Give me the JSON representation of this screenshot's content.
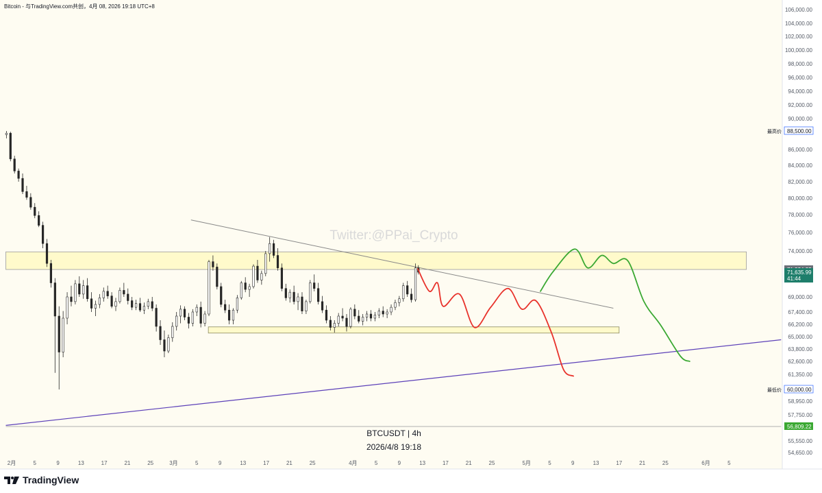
{
  "header": {
    "text": "Bitcoin - 与TradingView.com共创，4月 08, 2026 19:18 UTC+8"
  },
  "brand": {
    "name": "TradingView"
  },
  "chart_data": {
    "type": "candlestick",
    "symbol_label": "BTCUSDT | 4h",
    "time_label": "2026/4/8 19:18",
    "watermark": "Twitter:@PPai_Crypto",
    "x_ticks": [
      {
        "d": 1,
        "label": "2月"
      },
      {
        "d": 5,
        "label": "5"
      },
      {
        "d": 9,
        "label": "9"
      },
      {
        "d": 13,
        "label": "13"
      },
      {
        "d": 17,
        "label": "17"
      },
      {
        "d": 21,
        "label": "21"
      },
      {
        "d": 25,
        "label": "25"
      },
      {
        "d": 29,
        "label": "3月"
      },
      {
        "d": 33,
        "label": "5"
      },
      {
        "d": 37,
        "label": "9"
      },
      {
        "d": 41,
        "label": "13"
      },
      {
        "d": 45,
        "label": "17"
      },
      {
        "d": 49,
        "label": "21"
      },
      {
        "d": 53,
        "label": "25"
      },
      {
        "d": 60,
        "label": "4月"
      },
      {
        "d": 64,
        "label": "5"
      },
      {
        "d": 68,
        "label": "9"
      },
      {
        "d": 72,
        "label": "13"
      },
      {
        "d": 76,
        "label": "17"
      },
      {
        "d": 80,
        "label": "21"
      },
      {
        "d": 84,
        "label": "25"
      },
      {
        "d": 90,
        "label": "5月"
      },
      {
        "d": 94,
        "label": "5"
      },
      {
        "d": 98,
        "label": "9"
      },
      {
        "d": 102,
        "label": "13"
      },
      {
        "d": 106,
        "label": "17"
      },
      {
        "d": 110,
        "label": "21"
      },
      {
        "d": 114,
        "label": "25"
      },
      {
        "d": 121,
        "label": "6月"
      },
      {
        "d": 125,
        "label": "5"
      }
    ],
    "y_ticks": [
      {
        "v": 106000,
        "label": "106,000.00"
      },
      {
        "v": 104000,
        "label": "104,000.00"
      },
      {
        "v": 102000,
        "label": "102,000.00"
      },
      {
        "v": 100000,
        "label": "100,000.00"
      },
      {
        "v": 98000,
        "label": "98,000.00"
      },
      {
        "v": 96000,
        "label": "96,000.00"
      },
      {
        "v": 94000,
        "label": "94,000.00"
      },
      {
        "v": 92000,
        "label": "92,000.00"
      },
      {
        "v": 90000,
        "label": "90,000.00"
      },
      {
        "v": 86000,
        "label": "86,000.00"
      },
      {
        "v": 84000,
        "label": "84,000.00"
      },
      {
        "v": 82000,
        "label": "82,000.00"
      },
      {
        "v": 80000,
        "label": "80,000.00"
      },
      {
        "v": 78000,
        "label": "78,000.00"
      },
      {
        "v": 76000,
        "label": "76,000.00"
      },
      {
        "v": 74000,
        "label": "74,000.00"
      },
      {
        "v": 69000,
        "label": "69,000.00"
      },
      {
        "v": 67400,
        "label": "67,400.00"
      },
      {
        "v": 66200,
        "label": "66,200.00"
      },
      {
        "v": 65000,
        "label": "65,000.00"
      },
      {
        "v": 63800,
        "label": "63,800.00"
      },
      {
        "v": 62600,
        "label": "62,600.00"
      },
      {
        "v": 61350,
        "label": "61,350.00"
      },
      {
        "v": 58950,
        "label": "58,950.00"
      },
      {
        "v": 57750,
        "label": "57,750.00"
      },
      {
        "v": 55550,
        "label": "55,550.00"
      },
      {
        "v": 54650,
        "label": "54,650.00"
      }
    ],
    "price_tags": [
      {
        "v": 88500,
        "label": "88,500.00",
        "prefix": "最高价",
        "style": "outline"
      },
      {
        "v": 71924.22,
        "label": "71,924.22",
        "style": "gray"
      },
      {
        "v": 71635.99,
        "label": "71,635.99",
        "sub": "41:44",
        "style": "teal"
      },
      {
        "v": 60000,
        "label": "60,000.00",
        "prefix": "最低价",
        "style": "outline"
      },
      {
        "v": 56809.22,
        "label": "56,809.22",
        "style": "green"
      }
    ],
    "zones": [
      {
        "d0": 0,
        "d1": 128,
        "v0": 71924.22,
        "v1": 73900
      },
      {
        "d0": 35,
        "d1": 106,
        "v0": 65350,
        "v1": 65950
      }
    ],
    "lines": [
      {
        "name": "upper-trendline",
        "color": "#888888",
        "pts": [
          [
            32,
            77400
          ],
          [
            105,
            67800
          ]
        ]
      },
      {
        "name": "lower-trendline",
        "color": "#5b3fb8",
        "pts": [
          [
            0,
            56900
          ],
          [
            134,
            64700
          ]
        ]
      },
      {
        "name": "low-level-line",
        "color": "#b0b0b0",
        "pts": [
          [
            0,
            56809.22
          ],
          [
            134,
            56809.22
          ]
        ]
      }
    ],
    "projections": [
      {
        "name": "bearish-projection",
        "color": "#e8322b",
        "pts": [
          [
            71.2,
            72000
          ],
          [
            73.2,
            69600
          ],
          [
            74.6,
            70500
          ],
          [
            75.6,
            68000
          ],
          [
            78.4,
            69300
          ],
          [
            81.0,
            65900
          ],
          [
            83.8,
            67900
          ],
          [
            86.8,
            69900
          ],
          [
            89.2,
            67700
          ],
          [
            91.6,
            68600
          ],
          [
            94.3,
            65400
          ],
          [
            96.4,
            61800
          ],
          [
            98.1,
            61200
          ]
        ]
      },
      {
        "name": "bullish-projection",
        "color": "#3aa832",
        "pts": [
          [
            92.4,
            69600
          ],
          [
            94.6,
            71700
          ],
          [
            98.3,
            74200
          ],
          [
            100.6,
            72100
          ],
          [
            103.0,
            73500
          ],
          [
            105.0,
            72600
          ],
          [
            107.5,
            72900
          ],
          [
            110.3,
            68500
          ],
          [
            113.2,
            66100
          ],
          [
            116.6,
            63100
          ],
          [
            118.2,
            62600
          ]
        ]
      }
    ],
    "candles": [
      [
        0.1,
        88000,
        88500,
        87500,
        88200
      ],
      [
        0.8,
        88200,
        88400,
        84500,
        84800
      ],
      [
        1.5,
        84800,
        85200,
        83000,
        83300
      ],
      [
        2.2,
        83300,
        83600,
        82000,
        82400
      ],
      [
        2.9,
        82400,
        83000,
        80500,
        80800
      ],
      [
        3.6,
        80800,
        81500,
        79800,
        80100
      ],
      [
        4.3,
        80100,
        80600,
        78600,
        78900
      ],
      [
        5.0,
        78900,
        79400,
        77600,
        77900
      ],
      [
        5.7,
        77900,
        78400,
        76600,
        76800
      ],
      [
        6.4,
        76800,
        77200,
        74300,
        74800
      ],
      [
        7.1,
        74800,
        75300,
        72200,
        72600
      ],
      [
        7.8,
        72600,
        73000,
        70000,
        70500
      ],
      [
        8.5,
        70500,
        71000,
        61500,
        67000
      ],
      [
        9.2,
        67000,
        68000,
        60000,
        63500
      ],
      [
        9.9,
        63500,
        67500,
        63000,
        66800
      ],
      [
        10.6,
        66800,
        69500,
        66200,
        69000
      ],
      [
        11.3,
        69000,
        70200,
        68000,
        68500
      ],
      [
        12.0,
        68500,
        70800,
        68200,
        70400
      ],
      [
        12.7,
        70400,
        71200,
        69000,
        69300
      ],
      [
        13.4,
        69300,
        70800,
        68800,
        70200
      ],
      [
        14.1,
        70200,
        71000,
        68500,
        68800
      ],
      [
        14.8,
        68800,
        69500,
        67400,
        67800
      ],
      [
        15.5,
        67800,
        68600,
        67000,
        68200
      ],
      [
        16.2,
        68200,
        69300,
        67800,
        68900
      ],
      [
        16.9,
        68900,
        70000,
        68500,
        69600
      ],
      [
        17.6,
        69600,
        70200,
        68800,
        69100
      ],
      [
        18.3,
        69100,
        69500,
        67800,
        68000
      ],
      [
        19.0,
        68000,
        68900,
        67500,
        68500
      ],
      [
        19.7,
        68500,
        70000,
        68300,
        69700
      ],
      [
        20.4,
        69700,
        70500,
        69000,
        69300
      ],
      [
        21.1,
        69300,
        69900,
        68200,
        68600
      ],
      [
        21.8,
        68600,
        69000,
        67600,
        67900
      ],
      [
        22.5,
        67900,
        68700,
        67600,
        68300
      ],
      [
        23.2,
        68300,
        68900,
        67400,
        67600
      ],
      [
        23.9,
        67600,
        68400,
        67200,
        68000
      ],
      [
        24.6,
        68000,
        68800,
        67700,
        68500
      ],
      [
        25.3,
        68500,
        69000,
        67500,
        67800
      ],
      [
        26.0,
        67800,
        68200,
        65500,
        66000
      ],
      [
        26.7,
        66000,
        66600,
        64200,
        64700
      ],
      [
        27.4,
        64700,
        65600,
        63000,
        63600
      ],
      [
        28.1,
        63600,
        65200,
        63400,
        64900
      ],
      [
        28.8,
        64900,
        66400,
        64500,
        66000
      ],
      [
        29.5,
        66000,
        67400,
        65600,
        67000
      ],
      [
        30.2,
        67000,
        68100,
        66300,
        67700
      ],
      [
        30.9,
        67700,
        68000,
        66600,
        66900
      ],
      [
        31.6,
        66900,
        67300,
        65800,
        66300
      ],
      [
        32.3,
        66300,
        67700,
        66000,
        67400
      ],
      [
        33.0,
        67400,
        68200,
        67000,
        67900
      ],
      [
        33.7,
        67900,
        68500,
        65900,
        66300
      ],
      [
        34.4,
        66300,
        67500,
        66000,
        67200
      ],
      [
        35.1,
        67200,
        73000,
        67000,
        72800
      ],
      [
        35.8,
        72800,
        73500,
        71800,
        72200
      ],
      [
        36.5,
        72200,
        72600,
        69800,
        70100
      ],
      [
        37.2,
        70100,
        70500,
        67900,
        68200
      ],
      [
        37.9,
        68200,
        68700,
        67300,
        67600
      ],
      [
        38.6,
        67600,
        68200,
        66200,
        66600
      ],
      [
        39.3,
        66600,
        67800,
        66200,
        67600
      ],
      [
        40.0,
        67600,
        69200,
        67300,
        68900
      ],
      [
        40.7,
        68900,
        70700,
        68700,
        70500
      ],
      [
        41.4,
        70500,
        71100,
        69500,
        69800
      ],
      [
        42.1,
        69800,
        70400,
        69000,
        70100
      ],
      [
        42.8,
        70100,
        72500,
        69900,
        72300
      ],
      [
        43.5,
        72300,
        73000,
        70500,
        70800
      ],
      [
        44.2,
        70800,
        71800,
        70300,
        71500
      ],
      [
        44.9,
        71500,
        74000,
        71200,
        73700
      ],
      [
        45.6,
        73700,
        75500,
        72800,
        74800
      ],
      [
        46.3,
        74800,
        75200,
        73200,
        73500
      ],
      [
        47.0,
        73500,
        74300,
        71800,
        72100
      ],
      [
        47.7,
        72100,
        72600,
        69600,
        69900
      ],
      [
        48.4,
        69900,
        70400,
        68600,
        68900
      ],
      [
        49.1,
        68900,
        69800,
        68400,
        69500
      ],
      [
        49.8,
        69500,
        70200,
        68200,
        68500
      ],
      [
        50.5,
        68500,
        69400,
        67600,
        69000
      ],
      [
        51.2,
        69000,
        69500,
        67200,
        67500
      ],
      [
        51.9,
        67500,
        68700,
        67200,
        68500
      ],
      [
        52.6,
        68500,
        70800,
        68300,
        70500
      ],
      [
        53.3,
        70500,
        71400,
        69600,
        69900
      ],
      [
        54.0,
        69900,
        70500,
        68200,
        68500
      ],
      [
        54.7,
        68500,
        69100,
        67300,
        67600
      ],
      [
        55.4,
        67600,
        68100,
        66300,
        66600
      ],
      [
        56.1,
        66600,
        67000,
        65600,
        65900
      ],
      [
        56.8,
        65900,
        66600,
        65400,
        66300
      ],
      [
        57.5,
        66300,
        67300,
        66000,
        67000
      ],
      [
        58.2,
        67000,
        67800,
        66500,
        66800
      ],
      [
        58.9,
        66800,
        67200,
        65500,
        66000
      ],
      [
        59.6,
        66000,
        67900,
        65800,
        67700
      ],
      [
        60.3,
        67700,
        68200,
        66700,
        67000
      ],
      [
        61.0,
        67000,
        67600,
        66300,
        66500
      ],
      [
        61.7,
        66500,
        67200,
        66100,
        66900
      ],
      [
        62.4,
        66900,
        67500,
        66500,
        67200
      ],
      [
        63.1,
        67200,
        67600,
        66500,
        66800
      ],
      [
        63.8,
        66800,
        67400,
        66500,
        67100
      ],
      [
        64.5,
        67100,
        67800,
        66800,
        67500
      ],
      [
        65.2,
        67500,
        68000,
        66900,
        67200
      ],
      [
        65.9,
        67200,
        67700,
        66800,
        67400
      ],
      [
        66.6,
        67400,
        68200,
        67100,
        67900
      ],
      [
        67.3,
        67900,
        68700,
        67600,
        68400
      ],
      [
        68.0,
        68400,
        69100,
        68000,
        68800
      ],
      [
        68.7,
        68800,
        70500,
        68500,
        70200
      ],
      [
        69.4,
        70200,
        70700,
        69000,
        69300
      ],
      [
        70.1,
        69300,
        69900,
        68400,
        68700
      ],
      [
        70.8,
        68700,
        72600,
        68500,
        72100
      ],
      [
        71.3,
        72100,
        72400,
        71400,
        71636
      ]
    ]
  }
}
